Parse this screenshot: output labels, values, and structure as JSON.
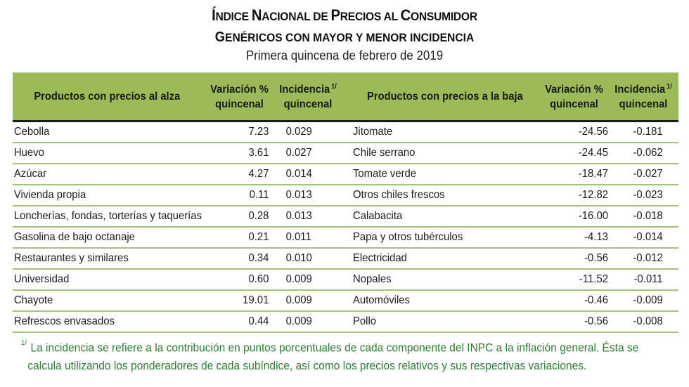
{
  "title": {
    "line1_parts": [
      {
        "text": "Í",
        "cap": true
      },
      {
        "text": "NDICE ",
        "cap": false
      },
      {
        "text": "N",
        "cap": true
      },
      {
        "text": "ACIONAL DE ",
        "cap": false
      },
      {
        "text": "P",
        "cap": true
      },
      {
        "text": "RECIOS AL ",
        "cap": false
      },
      {
        "text": "C",
        "cap": true
      },
      {
        "text": "ONSUMIDOR",
        "cap": false
      }
    ],
    "line1": "Índice Nacional de Precios al Consumidor",
    "line2": "Genéricos con mayor y menor incidencia",
    "line2_first": "G",
    "line2_rest": "ENÉRICOS CON MAYOR Y MENOR INCIDENCIA",
    "subtitle": "Primera quincena de febrero de 2019"
  },
  "table": {
    "headers": {
      "left_name": "Productos con precios al alza",
      "left_var_1": "Variación %",
      "left_var_2": "quincenal",
      "left_inc_1": "Incidencia",
      "left_inc_2": "quincenal",
      "right_name": "Productos con precios a la baja",
      "right_var_1": "Variación %",
      "right_var_2": "quincenal",
      "right_inc_1": "Incidencia",
      "right_inc_2": "quincenal",
      "note_marker": "1/"
    },
    "rows": [
      {
        "up_name": "Cebolla",
        "up_var": "7.23",
        "up_inc": "0.029",
        "down_name": "Jitomate",
        "down_var": "-24.56",
        "down_inc": "-0.181"
      },
      {
        "up_name": "Huevo",
        "up_var": "3.61",
        "up_inc": "0.027",
        "down_name": "Chile serrano",
        "down_var": "-24.45",
        "down_inc": "-0.062"
      },
      {
        "up_name": "Azúcar",
        "up_var": "4.27",
        "up_inc": "0.014",
        "down_name": "Tomate verde",
        "down_var": "-18.47",
        "down_inc": "-0.027"
      },
      {
        "up_name": "Vivienda propia",
        "up_var": "0.11",
        "up_inc": "0.013",
        "down_name": "Otros chiles frescos",
        "down_var": "-12.82",
        "down_inc": "-0.023"
      },
      {
        "up_name": "Loncherías, fondas, torterías y taquerías",
        "up_var": "0.28",
        "up_inc": "0.013",
        "down_name": "Calabacita",
        "down_var": "-16.00",
        "down_inc": "-0.018"
      },
      {
        "up_name": "Gasolina de bajo octanaje",
        "up_var": "0.21",
        "up_inc": "0.011",
        "down_name": "Papa y otros tubérculos",
        "down_var": "-4.13",
        "down_inc": "-0.014"
      },
      {
        "up_name": "Restaurantes y similares",
        "up_var": "0.34",
        "up_inc": "0.010",
        "down_name": "Electricidad",
        "down_var": "-0.56",
        "down_inc": "-0.012"
      },
      {
        "up_name": "Universidad",
        "up_var": "0.60",
        "up_inc": "0.009",
        "down_name": "Nopales",
        "down_var": "-11.52",
        "down_inc": "-0.011"
      },
      {
        "up_name": "Chayote",
        "up_var": "19.01",
        "up_inc": "0.009",
        "down_name": "Automóviles",
        "down_var": "-0.46",
        "down_inc": "-0.009"
      },
      {
        "up_name": "Refrescos envasados",
        "up_var": "0.44",
        "up_inc": "0.009",
        "down_name": "Pollo",
        "down_var": "-0.56",
        "down_inc": "-0.008"
      }
    ]
  },
  "footnote": {
    "marker": "1/",
    "line1": "La incidencia se refiere a la contribución en puntos porcentuales de cada componente del INPC a la inflación general. Ésta se",
    "line2": "calcula utilizando los ponderadores de cada subíndice, así como los precios relativos y sus respectivas variaciones."
  },
  "colors": {
    "header_green": "#9bbb59",
    "row_divider": "#a9c27a",
    "footnote_text": "#2e7d32"
  }
}
